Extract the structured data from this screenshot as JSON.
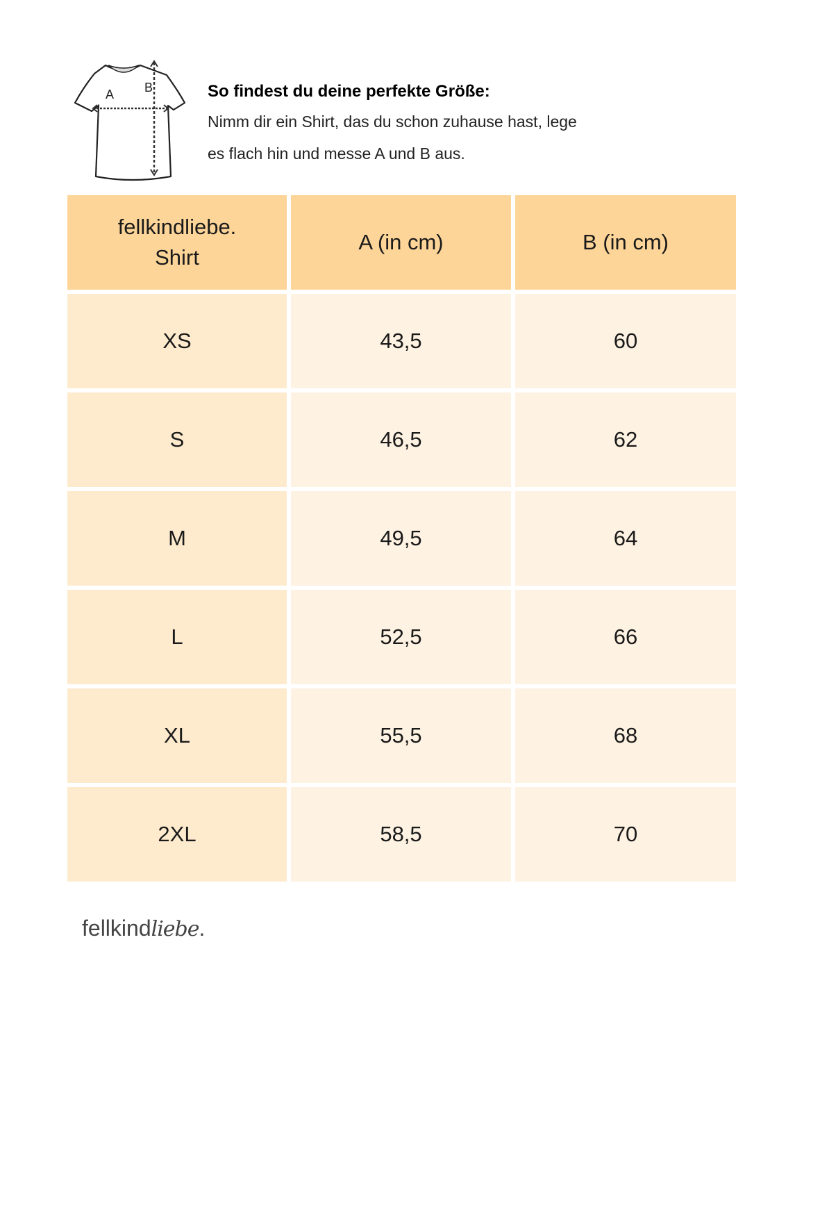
{
  "intro": {
    "shirt_icon": "tshirt-measurement-icon",
    "shirt_labels": {
      "a": "A",
      "b": "B"
    },
    "heading": "So findest du deine perfekte Größe:",
    "line1": "Nimm dir ein Shirt, das du schon zuhause hast, lege",
    "line2": "es flach hin und messe A und B aus."
  },
  "table": {
    "headers": [
      "fellkindliebe.",
      "Shirt",
      "A (in cm)",
      "B (in cm)"
    ],
    "rows": [
      [
        "XS",
        "43,5",
        "60"
      ],
      [
        "S",
        "46,5",
        "62"
      ],
      [
        "M",
        "49,5",
        "64"
      ],
      [
        "L",
        "52,5",
        "66"
      ],
      [
        "XL",
        "55,5",
        "68"
      ],
      [
        "2XL",
        "58,5",
        "70"
      ]
    ]
  },
  "logo": {
    "part1": "fellkind",
    "part2": "liebe",
    "dot": "."
  },
  "colors": {
    "header": "#fdd598",
    "size_column": "#feebcd",
    "value_cells": "#fef2e2"
  }
}
